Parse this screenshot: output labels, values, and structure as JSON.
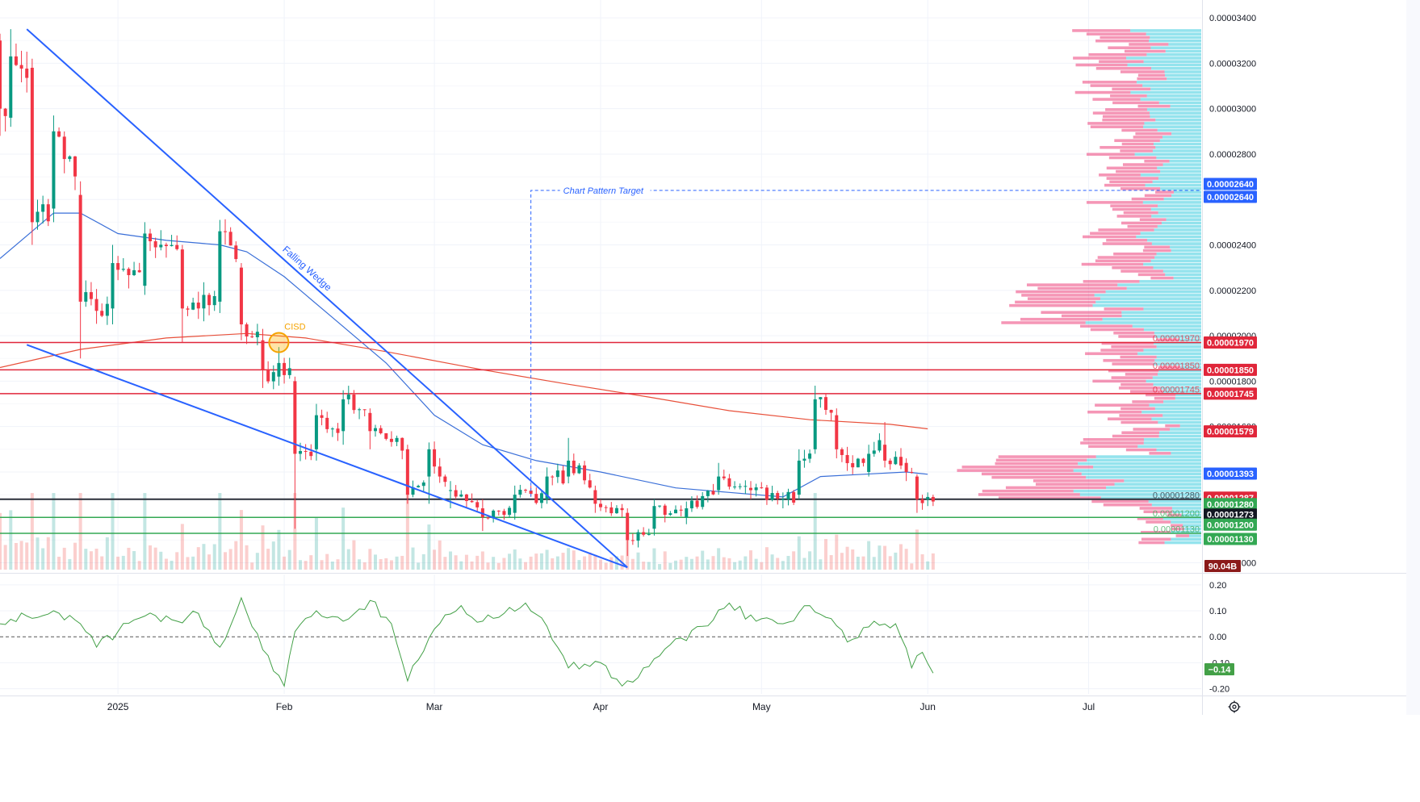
{
  "chart_data": [
    {
      "type": "candlestick",
      "title": "",
      "xlabel": "",
      "ylabel": "",
      "x_range": [
        "2024-12-10",
        "2025-07-22"
      ],
      "ylim": [
        9.7e-06,
        3.45e-05
      ],
      "grid": true,
      "time_ticks": [
        {
          "date": "2025-01-01",
          "label": "2025"
        },
        {
          "date": "2025-02-01",
          "label": "Feb"
        },
        {
          "date": "2025-03-01",
          "label": "Mar"
        },
        {
          "date": "2025-04-01",
          "label": "Apr"
        },
        {
          "date": "2025-05-01",
          "label": "May"
        },
        {
          "date": "2025-06-01",
          "label": "Jun"
        },
        {
          "date": "2025-07-01",
          "label": "Jul"
        }
      ],
      "price_ticks": [
        "0.00003400",
        "0.00003200",
        "0.00003000",
        "0.00002800",
        "0.00002600",
        "0.00002400",
        "0.00002200",
        "0.00002000",
        "0.00001800",
        "0.00001600",
        "0.00001000"
      ],
      "anchor_candles": [
        {
          "date": "2024-12-10",
          "o": 3.3e-05,
          "c": 3e-05,
          "h": 3.33e-05,
          "l": 2.88e-05
        },
        {
          "date": "2024-12-12",
          "o": 2.96e-05,
          "c": 3.23e-05,
          "h": 3.35e-05,
          "l": 2.92e-05
        },
        {
          "date": "2024-12-16",
          "o": 3.18e-05,
          "c": 2.5e-05,
          "h": 3.22e-05,
          "l": 2.4e-05
        },
        {
          "date": "2024-12-20",
          "o": 2.56e-05,
          "c": 2.9e-05,
          "h": 2.97e-05,
          "l": 2.5e-05
        },
        {
          "date": "2024-12-25",
          "o": 2.62e-05,
          "c": 2.15e-05,
          "h": 2.68e-05,
          "l": 1.9e-05
        },
        {
          "date": "2024-12-31",
          "o": 2.12e-05,
          "c": 2.32e-05,
          "h": 2.4e-05,
          "l": 2.05e-05
        },
        {
          "date": "2025-01-06",
          "o": 2.22e-05,
          "c": 2.45e-05,
          "h": 2.5e-05,
          "l": 2.18e-05
        },
        {
          "date": "2025-01-13",
          "o": 2.38e-05,
          "c": 2.12e-05,
          "h": 2.4e-05,
          "l": 1.97e-05
        },
        {
          "date": "2025-01-20",
          "o": 2.15e-05,
          "c": 2.46e-05,
          "h": 2.51e-05,
          "l": 2.1e-05
        },
        {
          "date": "2025-01-24",
          "o": 2.3e-05,
          "c": 2.05e-05,
          "h": 2.32e-05,
          "l": 1.98e-05
        },
        {
          "date": "2025-01-28",
          "o": 1.98e-05,
          "c": 1.85e-05,
          "h": 2.03e-05,
          "l": 1.77e-05
        },
        {
          "date": "2025-01-31",
          "o": 1.82e-05,
          "c": 1.88e-05,
          "h": 1.95e-05,
          "l": 1.78e-05
        },
        {
          "date": "2025-02-03",
          "o": 1.8e-05,
          "c": 1.48e-05,
          "h": 1.82e-05,
          "l": 1.15e-05
        },
        {
          "date": "2025-02-07",
          "o": 1.5e-05,
          "c": 1.65e-05,
          "h": 1.7e-05,
          "l": 1.45e-05
        },
        {
          "date": "2025-02-12",
          "o": 1.58e-05,
          "c": 1.72e-05,
          "h": 1.76e-05,
          "l": 1.52e-05
        },
        {
          "date": "2025-02-17",
          "o": 1.66e-05,
          "c": 1.58e-05,
          "h": 1.68e-05,
          "l": 1.5e-05
        },
        {
          "date": "2025-02-24",
          "o": 1.5e-05,
          "c": 1.3e-05,
          "h": 1.52e-05,
          "l": 1.26e-05
        },
        {
          "date": "2025-02-28",
          "o": 1.38e-05,
          "c": 1.5e-05,
          "h": 1.53e-05,
          "l": 1.26e-05
        },
        {
          "date": "2025-03-04",
          "o": 1.32e-05,
          "c": 1.32e-05,
          "h": 1.36e-05,
          "l": 1.24e-05
        },
        {
          "date": "2025-03-10",
          "o": 1.24e-05,
          "c": 1.2e-05,
          "h": 1.28e-05,
          "l": 1.14e-05
        },
        {
          "date": "2025-03-16",
          "o": 1.22e-05,
          "c": 1.3e-05,
          "h": 1.34e-05,
          "l": 1.19e-05
        },
        {
          "date": "2025-03-22",
          "o": 1.28e-05,
          "c": 1.38e-05,
          "h": 1.42e-05,
          "l": 1.26e-05
        },
        {
          "date": "2025-03-26",
          "o": 1.38e-05,
          "c": 1.45e-05,
          "h": 1.55e-05,
          "l": 1.35e-05
        },
        {
          "date": "2025-03-31",
          "o": 1.32e-05,
          "c": 1.26e-05,
          "h": 1.34e-05,
          "l": 1.22e-05
        },
        {
          "date": "2025-04-06",
          "o": 1.22e-05,
          "c": 1.1e-05,
          "h": 1.24e-05,
          "l": 1.03e-05
        },
        {
          "date": "2025-04-11",
          "o": 1.15e-05,
          "c": 1.25e-05,
          "h": 1.28e-05,
          "l": 1.12e-05
        },
        {
          "date": "2025-04-17",
          "o": 1.2e-05,
          "c": 1.24e-05,
          "h": 1.27e-05,
          "l": 1.17e-05
        },
        {
          "date": "2025-04-23",
          "o": 1.32e-05,
          "c": 1.38e-05,
          "h": 1.44e-05,
          "l": 1.3e-05
        },
        {
          "date": "2025-04-29",
          "o": 1.33e-05,
          "c": 1.32e-05,
          "h": 1.36e-05,
          "l": 1.28e-05
        },
        {
          "date": "2025-05-05",
          "o": 1.28e-05,
          "c": 1.28e-05,
          "h": 1.31e-05,
          "l": 1.24e-05
        },
        {
          "date": "2025-05-08",
          "o": 1.3e-05,
          "c": 1.45e-05,
          "h": 1.5e-05,
          "l": 1.28e-05
        },
        {
          "date": "2025-05-11",
          "o": 1.5e-05,
          "c": 1.72e-05,
          "h": 1.78e-05,
          "l": 1.48e-05
        },
        {
          "date": "2025-05-15",
          "o": 1.65e-05,
          "c": 1.5e-05,
          "h": 1.68e-05,
          "l": 1.46e-05
        },
        {
          "date": "2025-05-21",
          "o": 1.4e-05,
          "c": 1.48e-05,
          "h": 1.52e-05,
          "l": 1.38e-05
        },
        {
          "date": "2025-05-24",
          "o": 1.52e-05,
          "c": 1.45e-05,
          "h": 1.62e-05,
          "l": 1.42e-05
        },
        {
          "date": "2025-05-28",
          "o": 1.44e-05,
          "c": 1.4e-05,
          "h": 1.46e-05,
          "l": 1.36e-05
        },
        {
          "date": "2025-05-30",
          "o": 1.38e-05,
          "c": 1.28e-05,
          "h": 1.39e-05,
          "l": 1.22e-05
        },
        {
          "date": "2025-06-01",
          "o": 1.28e-05,
          "c": 1.29e-05,
          "h": 1.31e-05,
          "l": 1.25e-05
        },
        {
          "date": "2025-06-02",
          "o": 1.29e-05,
          "c": 1.27e-05,
          "h": 1.3e-05,
          "l": 1.25e-05
        }
      ],
      "moving_averages": [
        {
          "color": "#3a6fd8",
          "points": [
            [
              "2024-12-10",
              2.34e-05
            ],
            [
              "2024-12-20",
              2.54e-05
            ],
            [
              "2024-12-25",
              2.54e-05
            ],
            [
              "2025-01-01",
              2.45e-05
            ],
            [
              "2025-01-10",
              2.42e-05
            ],
            [
              "2025-01-20",
              2.4e-05
            ],
            [
              "2025-01-25",
              2.37e-05
            ],
            [
              "2025-02-01",
              2.26e-05
            ],
            [
              "2025-02-10",
              2.08e-05
            ],
            [
              "2025-02-20",
              1.88e-05
            ],
            [
              "2025-03-01",
              1.65e-05
            ],
            [
              "2025-03-10",
              1.52e-05
            ],
            [
              "2025-03-20",
              1.45e-05
            ],
            [
              "2025-04-01",
              1.4e-05
            ],
            [
              "2025-04-15",
              1.33e-05
            ],
            [
              "2025-04-25",
              1.31e-05
            ],
            [
              "2025-05-05",
              1.29e-05
            ],
            [
              "2025-05-12",
              1.38e-05
            ],
            [
              "2025-05-20",
              1.39e-05
            ],
            [
              "2025-05-28",
              1.4e-05
            ],
            [
              "2025-06-01",
              1.39e-05
            ]
          ]
        },
        {
          "color": "#e8503a",
          "points": [
            [
              "2024-12-10",
              1.86e-05
            ],
            [
              "2024-12-25",
              1.94e-05
            ],
            [
              "2025-01-10",
              1.99e-05
            ],
            [
              "2025-01-25",
              2.01e-05
            ],
            [
              "2025-02-05",
              1.99e-05
            ],
            [
              "2025-02-20",
              1.93e-05
            ],
            [
              "2025-03-10",
              1.85e-05
            ],
            [
              "2025-03-25",
              1.79e-05
            ],
            [
              "2025-04-10",
              1.73e-05
            ],
            [
              "2025-04-25",
              1.67e-05
            ],
            [
              "2025-05-10",
              1.63e-05
            ],
            [
              "2025-05-25",
              1.61e-05
            ],
            [
              "2025-06-01",
              1.59e-05
            ]
          ]
        }
      ],
      "horizontal_levels": [
        {
          "price": 1.97e-05,
          "color": "#e0263a",
          "label": "0.00001970"
        },
        {
          "price": 1.85e-05,
          "color": "#e0263a",
          "label": "0.00001850"
        },
        {
          "price": 1.745e-05,
          "color": "#e0263a",
          "label": "0.00001745"
        },
        {
          "price": 1.28e-05,
          "color": "#2a2e39",
          "label": "0.00001280"
        },
        {
          "price": 1.2e-05,
          "color": "#33a853",
          "label": "0.00001200"
        },
        {
          "price": 1.13e-05,
          "color": "#33a853",
          "label": "0.00001130"
        }
      ],
      "price_tags": [
        {
          "price": 2.64e-05,
          "text": "0.00002640",
          "bg": "#2962ff",
          "offset": -8
        },
        {
          "price": 2.64e-05,
          "text": "0.00002640",
          "bg": "#2962ff",
          "offset": 8
        },
        {
          "price": 1.97e-05,
          "text": "0.00001970",
          "bg": "#e0263a",
          "offset": 0
        },
        {
          "price": 1.85e-05,
          "text": "0.00001850",
          "bg": "#e0263a",
          "offset": 0
        },
        {
          "price": 1.745e-05,
          "text": "0.00001745",
          "bg": "#e0263a",
          "offset": 0
        },
        {
          "price": 1.579e-05,
          "text": "0.00001579",
          "bg": "#e0263a",
          "offset": 0
        },
        {
          "price": 1.393e-05,
          "text": "0.00001393",
          "bg": "#2962ff",
          "offset": 0
        },
        {
          "price": 1.287e-05,
          "text": "0.00001287",
          "bg": "#e0263a",
          "offset": 0
        },
        {
          "price": 1.28e-05,
          "text": "0.00001280",
          "bg": "#33a853",
          "offset": 6
        },
        {
          "price": 1.273e-05,
          "text": "0.00001273",
          "bg": "#131722",
          "offset": 17
        },
        {
          "price": 1.2e-05,
          "text": "0.00001200",
          "bg": "#33a853",
          "offset": 9
        },
        {
          "price": 1.13e-05,
          "text": "0.00001130",
          "bg": "#33a853",
          "offset": 7
        }
      ],
      "annotations": {
        "wedge_label": "Falling Wedge",
        "cisd_label": "CISD",
        "cisd_point": {
          "date": "2025-01-31",
          "price": 1.97e-05
        },
        "target_label": "Chart Pattern Target",
        "target_price": 2.64e-05,
        "target_start_date": "2025-03-19",
        "wedge_upper": [
          [
            "2024-12-15",
            3.35e-05
          ],
          [
            "2025-04-06",
            9.8e-06
          ]
        ],
        "wedge_lower": [
          [
            "2024-12-15",
            1.96e-05
          ],
          [
            "2025-04-06",
            9.8e-06
          ]
        ]
      },
      "volume": {
        "current_label": "90.04B"
      }
    },
    {
      "type": "line",
      "title": "",
      "ylim": [
        -0.22,
        0.24
      ],
      "ticks": [
        "0.20",
        "0.10",
        "0.00",
        "-0.10",
        "-0.20"
      ],
      "current_value_label": "−0.14",
      "series": [
        {
          "points": [
            [
              "2024-12-10",
              0.05
            ],
            [
              "2024-12-15",
              0.08
            ],
            [
              "2024-12-20",
              0.1
            ],
            [
              "2024-12-25",
              0.05
            ],
            [
              "2024-12-28",
              -0.04
            ],
            [
              "2025-01-01",
              0.02
            ],
            [
              "2025-01-06",
              0.08
            ],
            [
              "2025-01-12",
              0.06
            ],
            [
              "2025-01-16",
              0.09
            ],
            [
              "2025-01-20",
              -0.04
            ],
            [
              "2025-01-24",
              0.15
            ],
            [
              "2025-01-28",
              -0.05
            ],
            [
              "2025-02-01",
              -0.19
            ],
            [
              "2025-02-03",
              0.02
            ],
            [
              "2025-02-07",
              0.1
            ],
            [
              "2025-02-12",
              0.06
            ],
            [
              "2025-02-17",
              0.14
            ],
            [
              "2025-02-21",
              0.05
            ],
            [
              "2025-02-24",
              -0.17
            ],
            [
              "2025-03-01",
              0.03
            ],
            [
              "2025-03-06",
              0.12
            ],
            [
              "2025-03-10",
              0.06
            ],
            [
              "2025-03-14",
              0.09
            ],
            [
              "2025-03-18",
              0.13
            ],
            [
              "2025-03-22",
              0.04
            ],
            [
              "2025-03-26",
              -0.12
            ],
            [
              "2025-04-01",
              -0.1
            ],
            [
              "2025-04-05",
              -0.19
            ],
            [
              "2025-04-09",
              -0.12
            ],
            [
              "2025-04-14",
              -0.03
            ],
            [
              "2025-04-20",
              0.04
            ],
            [
              "2025-04-25",
              0.13
            ],
            [
              "2025-04-30",
              0.06
            ],
            [
              "2025-05-05",
              0.05
            ],
            [
              "2025-05-10",
              0.12
            ],
            [
              "2025-05-14",
              0.07
            ],
            [
              "2025-05-17",
              -0.02
            ],
            [
              "2025-05-22",
              0.06
            ],
            [
              "2025-05-26",
              0.05
            ],
            [
              "2025-05-29",
              -0.12
            ],
            [
              "2025-05-31",
              -0.06
            ],
            [
              "2025-06-02",
              -0.14
            ]
          ]
        }
      ]
    }
  ]
}
